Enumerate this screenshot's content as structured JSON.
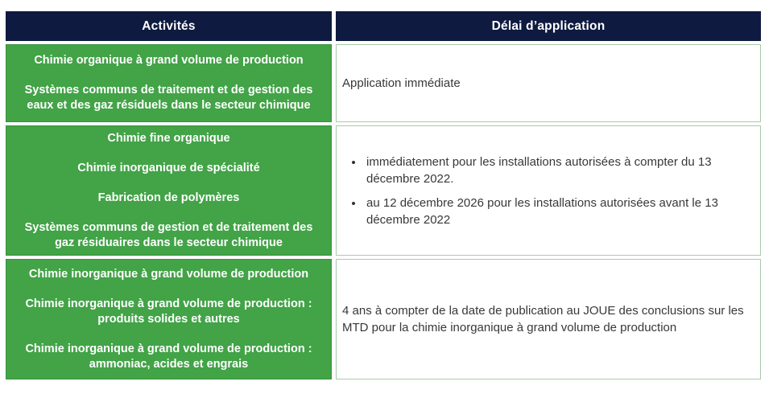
{
  "colors": {
    "header_bg": "#0e1a40",
    "header_text": "#ffffff",
    "activity_bg": "#42a347",
    "activity_border": "#37933c",
    "delay_border": "#a9cba9",
    "delay_text": "#383838",
    "page_bg": "#ffffff"
  },
  "table": {
    "headers": [
      {
        "label": "Activités"
      },
      {
        "label": "Délai d’application"
      }
    ],
    "rows": [
      {
        "activities": [
          "Chimie organique à grand volume de production",
          "Systèmes communs de traitement et de gestion des eaux et des gaz résiduels dans le secteur chimique"
        ],
        "delay_text": "Application immédiate"
      },
      {
        "activities": [
          "Chimie fine organique",
          "Chimie inorganique de spécialité",
          "Fabrication de polymères",
          "Systèmes communs de gestion et de traitement des gaz résiduaires dans le secteur chimique"
        ],
        "delay_bullets": [
          "immédiatement pour les installations autorisées à compter du 13 décembre 2022.",
          "au 12 décembre 2026 pour les installations autorisées avant le 13 décembre 2022"
        ]
      },
      {
        "activities": [
          "Chimie inorganique à grand volume de production",
          "Chimie inorganique à grand volume de production : produits solides et autres",
          "Chimie inorganique à grand volume de production : ammoniac, acides et engrais"
        ],
        "delay_text": "4 ans à compter de la date de publication au JOUE des conclusions sur les MTD pour la chimie inorganique à grand volume de production"
      }
    ]
  }
}
